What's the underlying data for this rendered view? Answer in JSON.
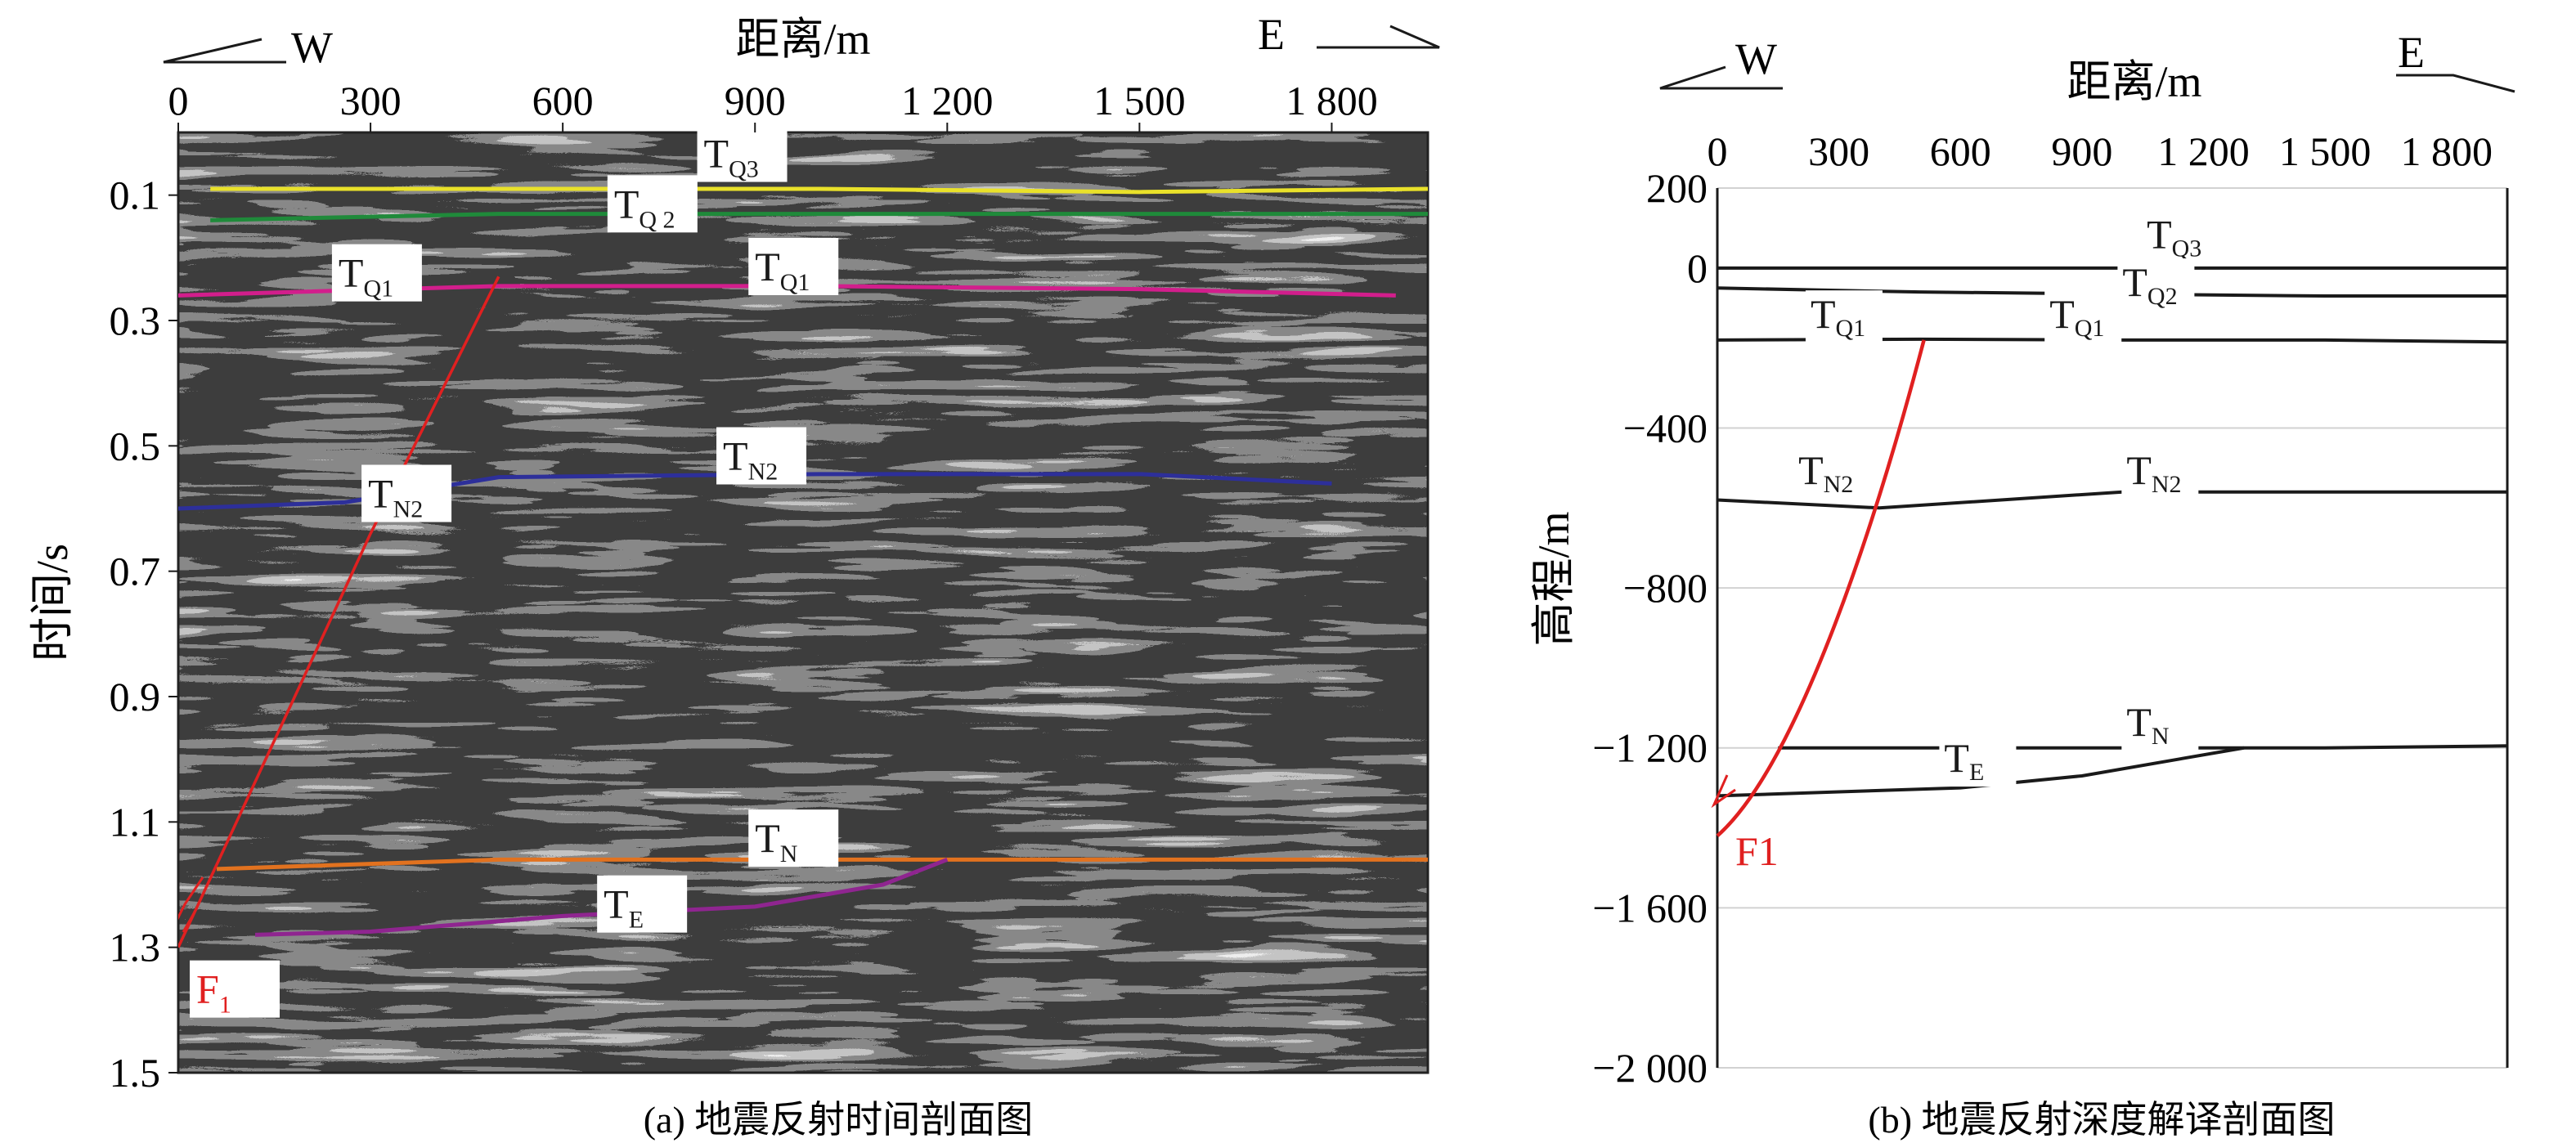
{
  "figure": {
    "caption_a": "(a) 地震反射时间剖面图",
    "caption_b": "(b) 地震反射深度解译剖面图",
    "west": "W",
    "east": "E",
    "fault_label": "F",
    "fault_sub": "1",
    "fault_label_b": "F1"
  },
  "chart_data": [
    {
      "type": "line",
      "panel": "a",
      "title": "(a) 地震反射时间剖面图",
      "xlabel": "距离/m",
      "ylabel": "时间/s",
      "xlim": [
        0,
        1950
      ],
      "ylim": [
        1.5,
        0.0
      ],
      "y_inverted": true,
      "xticks": [
        0,
        300,
        600,
        900,
        1200,
        1500,
        1800
      ],
      "xtick_labels": [
        "0",
        "300",
        "600",
        "900",
        "1 200",
        "1 500",
        "1 800"
      ],
      "yticks": [
        0.1,
        0.3,
        0.5,
        0.7,
        0.9,
        1.1,
        1.3,
        1.5
      ],
      "ytick_labels": [
        "0.1",
        "0.3",
        "0.5",
        "0.7",
        "0.9",
        "1.1",
        "1.3",
        "1.5"
      ],
      "background": "seismic reflection section (grayscale wiggle traces)",
      "series": [
        {
          "name": "TQ3",
          "label_main": "T",
          "label_sub": "Q3",
          "color": "#e9e12a",
          "x": [
            50,
            500,
            1000,
            1500,
            1950
          ],
          "y": [
            0.09,
            0.09,
            0.09,
            0.095,
            0.09
          ]
        },
        {
          "name": "TQ2",
          "label_main": "T",
          "label_sub": "Q 2",
          "color": "#1f8a3a",
          "x": [
            50,
            500,
            1000,
            1500,
            1950
          ],
          "y": [
            0.14,
            0.13,
            0.13,
            0.13,
            0.13
          ]
        },
        {
          "name": "TQ1",
          "label_main": "T",
          "label_sub": "Q1",
          "color": "#d21e8c",
          "x": [
            0,
            500,
            1000,
            1500,
            1900
          ],
          "y": [
            0.26,
            0.245,
            0.245,
            0.25,
            0.26
          ]
        },
        {
          "name": "TN2",
          "label_main": "T",
          "label_sub": "N2",
          "color": "#2d2f9a",
          "x": [
            0,
            260,
            500,
            1000,
            1500,
            1800
          ],
          "y": [
            0.6,
            0.59,
            0.55,
            0.545,
            0.545,
            0.56
          ]
        },
        {
          "name": "TN",
          "label_main": "T",
          "label_sub": "N",
          "color": "#e2721f",
          "x": [
            60,
            500,
            1000,
            1500,
            1950
          ],
          "y": [
            1.175,
            1.16,
            1.16,
            1.16,
            1.16
          ]
        },
        {
          "name": "TE",
          "label_main": "T",
          "label_sub": "E",
          "color": "#8f2590",
          "x": [
            120,
            300,
            600,
            900,
            1100,
            1200
          ],
          "y": [
            1.28,
            1.275,
            1.25,
            1.235,
            1.2,
            1.16
          ]
        },
        {
          "name": "F1",
          "label_main": "F",
          "label_sub": "1",
          "color": "#e02020",
          "x": [
            0,
            150,
            300,
            500
          ],
          "y": [
            1.3,
            0.97,
            0.64,
            0.23
          ]
        }
      ]
    },
    {
      "type": "line",
      "panel": "b",
      "title": "(b) 地震反射深度解译剖面图",
      "xlabel": "距离/m",
      "ylabel": "高程/m",
      "xlim": [
        0,
        1950
      ],
      "ylim": [
        -2000,
        200
      ],
      "xticks": [
        0,
        300,
        600,
        900,
        1200,
        1500,
        1800
      ],
      "xtick_labels": [
        "0",
        "300",
        "600",
        "900",
        "1 200",
        "1 500",
        "1 800"
      ],
      "yticks": [
        200,
        0,
        -400,
        -800,
        -1200,
        -1600,
        -2000
      ],
      "ytick_labels": [
        "200",
        "0",
        "−400",
        "−800",
        "−1 200",
        "−1 600",
        "−2 000"
      ],
      "grid": true,
      "series": [
        {
          "name": "TQ3",
          "label_main": "T",
          "label_sub": "Q3",
          "color": "#1a1a1a",
          "x": [
            0,
            500,
            1000,
            1500,
            1950
          ],
          "y": [
            0,
            0,
            0,
            0,
            0
          ]
        },
        {
          "name": "TQ2",
          "label_main": "T",
          "label_sub": "Q2",
          "color": "#1a1a1a",
          "x": [
            0,
            500,
            1000,
            1500,
            1950
          ],
          "y": [
            -50,
            -60,
            -65,
            -70,
            -70
          ]
        },
        {
          "name": "TQ1",
          "label_main": "T",
          "label_sub": "Q1",
          "color": "#1a1a1a",
          "x": [
            0,
            500,
            1000,
            1500,
            1950
          ],
          "y": [
            -180,
            -178,
            -180,
            -180,
            -185
          ]
        },
        {
          "name": "TN2",
          "label_main": "T",
          "label_sub": "N2",
          "color": "#1a1a1a",
          "x": [
            0,
            400,
            1000,
            1500,
            1950
          ],
          "y": [
            -580,
            -600,
            -560,
            -560,
            -560
          ]
        },
        {
          "name": "TN",
          "label_main": "T",
          "label_sub": "N",
          "color": "#1a1a1a",
          "x": [
            150,
            600,
            1000,
            1500,
            1950
          ],
          "y": [
            -1200,
            -1200,
            -1200,
            -1200,
            -1195
          ]
        },
        {
          "name": "TE",
          "label_main": "T",
          "label_sub": "E",
          "color": "#1a1a1a",
          "x": [
            0,
            300,
            600,
            900,
            1300
          ],
          "y": [
            -1320,
            -1310,
            -1300,
            -1270,
            -1200
          ]
        },
        {
          "name": "F1",
          "label_main": "F",
          "label_sub": "1",
          "color": "#e02020",
          "x": [
            0,
            150,
            300,
            400,
            510
          ],
          "y": [
            -1420,
            -1250,
            -950,
            -600,
            -180
          ]
        }
      ]
    }
  ]
}
